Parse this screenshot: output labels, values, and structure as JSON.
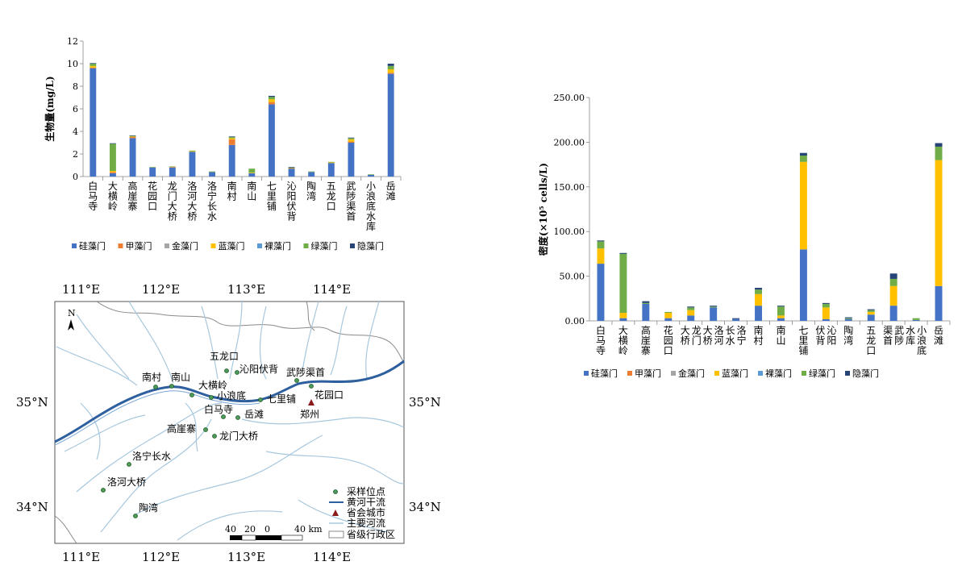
{
  "colors": {
    "gui": "#4472C4",
    "jia": "#ED7D31",
    "jin": "#A5A5A5",
    "lan": "#FFC000",
    "luo": "#5B9BD5",
    "lv": "#70AD47",
    "yin": "#264478"
  },
  "legend": [
    "硅藻门",
    "甲藻门",
    "金藻门",
    "蓝藻门",
    "裸藻门",
    "绿藻门",
    "隐藻门"
  ],
  "chart_data": [
    {
      "type": "bar",
      "stacked": true,
      "title": "",
      "ylabel": "生物量(mg/L)",
      "ylim": [
        0,
        12
      ],
      "yticks": [
        "0",
        "2",
        "4",
        "6",
        "8",
        "10",
        "12"
      ],
      "categories": [
        "白马寺",
        "大横岭",
        "高崖寨",
        "花园口",
        "龙门大桥",
        "洛河大桥",
        "洛宁长水",
        "南村",
        "南山",
        "七里铺",
        "沁阳伏背",
        "陶湾",
        "五龙口",
        "武陟渠首",
        "小浪底水库",
        "岳滩"
      ],
      "series": [
        {
          "name": "硅藻门",
          "values": [
            9.6,
            0.3,
            3.4,
            0.8,
            0.8,
            2.2,
            0.4,
            2.8,
            0.3,
            6.4,
            0.7,
            0.4,
            1.2,
            3.0,
            0.15,
            9.1
          ]
        },
        {
          "name": "甲藻门",
          "values": [
            0.05,
            0.1,
            0.1,
            0.0,
            0.05,
            0.0,
            0.0,
            0.5,
            0.0,
            0.2,
            0.05,
            0.0,
            0.0,
            0.1,
            0.0,
            0.1
          ]
        },
        {
          "name": "金藻门",
          "values": [
            0.0,
            0.0,
            0.0,
            0.0,
            0.0,
            0.0,
            0.0,
            0.0,
            0.0,
            0.0,
            0.0,
            0.0,
            0.0,
            0.0,
            0.0,
            0.0
          ]
        },
        {
          "name": "蓝藻门",
          "values": [
            0.15,
            0.1,
            0.05,
            0.0,
            0.0,
            0.05,
            0.0,
            0.1,
            0.05,
            0.25,
            0.0,
            0.0,
            0.05,
            0.2,
            0.0,
            0.3
          ]
        },
        {
          "name": "裸藻门",
          "values": [
            0.0,
            0.0,
            0.0,
            0.0,
            0.0,
            0.0,
            0.0,
            0.0,
            0.0,
            0.0,
            0.0,
            0.0,
            0.0,
            0.0,
            0.0,
            0.0
          ]
        },
        {
          "name": "绿藻门",
          "values": [
            0.2,
            2.4,
            0.05,
            0.05,
            0.05,
            0.05,
            0.05,
            0.1,
            0.35,
            0.2,
            0.05,
            0.05,
            0.05,
            0.1,
            0.05,
            0.3
          ]
        },
        {
          "name": "隐藻门",
          "values": [
            0.05,
            0.05,
            0.05,
            0.0,
            0.0,
            0.0,
            0.0,
            0.05,
            0.0,
            0.1,
            0.05,
            0.0,
            0.0,
            0.05,
            0.0,
            0.2
          ]
        }
      ]
    },
    {
      "type": "bar",
      "stacked": true,
      "title": "",
      "ylabel": "密度(×10⁵ cells/L)",
      "ylim": [
        0,
        250
      ],
      "yticks": [
        "0.00",
        "50.00",
        "100.00",
        "150.00",
        "200.00",
        "250.00"
      ],
      "categories": [
        "白马寺",
        "大横岭",
        "高崖寨",
        "花园口",
        "龙门大桥",
        "洛河大桥",
        "洛宁长水",
        "南村",
        "南山",
        "七里铺",
        "沁阳伏背",
        "陶湾",
        "五龙口",
        "武陟渠首",
        "小浪底水库",
        "岳滩"
      ],
      "series": [
        {
          "name": "硅藻门",
          "values": [
            64,
            3,
            19,
            3,
            6,
            15,
            2,
            17,
            3,
            80,
            2,
            2,
            7,
            17,
            1,
            39
          ]
        },
        {
          "name": "甲藻门",
          "values": [
            0,
            0,
            0,
            0,
            0,
            0,
            0,
            0,
            0,
            0,
            0,
            0,
            0,
            0,
            0,
            0
          ]
        },
        {
          "name": "金藻门",
          "values": [
            0,
            0,
            0,
            0,
            0,
            0,
            0,
            0,
            0,
            0,
            0,
            0,
            0,
            0,
            0,
            0
          ]
        },
        {
          "name": "蓝藻门",
          "values": [
            17,
            6,
            0,
            6,
            6,
            0,
            0,
            13,
            3,
            98,
            13,
            0,
            3,
            22,
            0,
            141
          ]
        },
        {
          "name": "裸藻门",
          "values": [
            0,
            0,
            0,
            0,
            0,
            0,
            0,
            0,
            0,
            0,
            0,
            0,
            0,
            0,
            0,
            0
          ]
        },
        {
          "name": "绿藻门",
          "values": [
            8,
            66,
            1,
            1,
            3,
            1,
            0,
            5,
            10,
            7,
            4,
            1,
            2,
            8,
            2,
            15
          ]
        },
        {
          "name": "隐藻门",
          "values": [
            1,
            1,
            2,
            0,
            1,
            1,
            1,
            2,
            1,
            3,
            1,
            1,
            1,
            6,
            0,
            4
          ]
        }
      ]
    }
  ],
  "map": {
    "lon_top": [
      "111°E",
      "112°E",
      "113°E",
      "114°E"
    ],
    "lon_bottom": [
      "111°E",
      "112°E",
      "113°E",
      "114°E"
    ],
    "lat_left": [
      "35°N",
      "34°N"
    ],
    "lat_right": [
      "35°N",
      "34°N"
    ],
    "north": "N",
    "sites": [
      "五龙口",
      "沁阳伏背",
      "武陟渠首",
      "南村",
      "南山",
      "大横岭",
      "小浪底",
      "七里铺",
      "花园口",
      "白马寺",
      "岳滩",
      "高崖寨",
      "龙门大桥",
      "洛宁长水",
      "洛河大桥",
      "陶湾"
    ],
    "city": "郑州",
    "scale_labels": [
      "40",
      "20",
      "0",
      "40 km"
    ],
    "legend": [
      "采样位点",
      "黄河干流",
      "省会城市",
      "主要河流",
      "省级行政区"
    ]
  }
}
